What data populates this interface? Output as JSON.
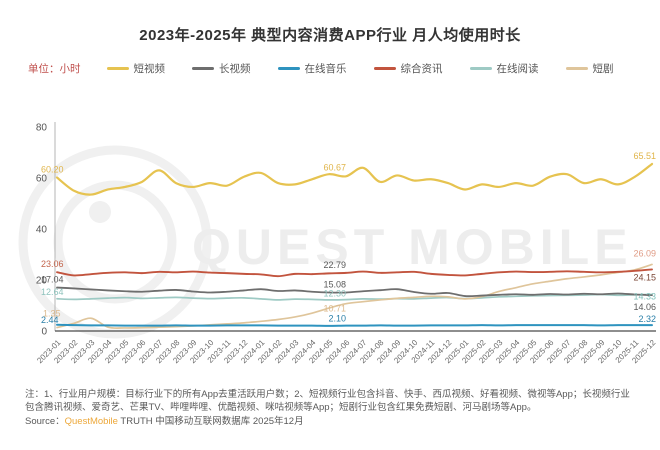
{
  "title": "2023年-2025年 典型内容消费APP行业 月人均使用时长",
  "unit_label": "单位：小时",
  "legend": {
    "items": [
      {
        "label": "短视频",
        "color": "#e6c350"
      },
      {
        "label": "长视频",
        "color": "#6e6e6e"
      },
      {
        "label": "在线音乐",
        "color": "#2e93bf"
      },
      {
        "label": "综合资讯",
        "color": "#c2543e"
      },
      {
        "label": "在线阅读",
        "color": "#9ecac4"
      },
      {
        "label": "短剧",
        "color": "#dfc59b"
      }
    ]
  },
  "watermark": {
    "text": "QUEST MOBILE"
  },
  "chart_data": {
    "type": "line",
    "title": "2023年-2025年 典型内容消费APP行业 月人均使用时长",
    "ylabel": "小时",
    "ylim": [
      0,
      80
    ],
    "yticks": [
      0,
      20,
      40,
      60,
      80
    ],
    "grid": false,
    "legend_position": "top",
    "x": [
      "2023-01",
      "2023-02",
      "2023-03",
      "2023-04",
      "2023-05",
      "2023-06",
      "2023-07",
      "2023-08",
      "2023-09",
      "2023-10",
      "2023-11",
      "2023-12",
      "2024-01",
      "2024-02",
      "2024-03",
      "2024-04",
      "2024-05",
      "2024-06",
      "2024-07",
      "2024-08",
      "2024-09",
      "2024-10",
      "2024-11",
      "2024-12",
      "2025-01",
      "2025-02",
      "2025-03",
      "2025-04",
      "2025-05",
      "2025-06",
      "2025-07",
      "2025-08",
      "2025-09",
      "2025-10",
      "2025-11",
      "2025-12"
    ],
    "series": [
      {
        "name": "短视频",
        "color": "#e6c350",
        "values": [
          60.2,
          55.0,
          53.5,
          55.5,
          56.5,
          58.5,
          63.0,
          58.0,
          56.5,
          58.0,
          57.0,
          60.5,
          62.0,
          58.0,
          57.5,
          59.5,
          61.5,
          60.67,
          64.0,
          58.5,
          61.0,
          59.0,
          59.5,
          58.0,
          55.5,
          57.5,
          56.5,
          58.0,
          57.0,
          60.5,
          61.5,
          58.0,
          59.5,
          57.5,
          60.5,
          65.51
        ]
      },
      {
        "name": "长视频",
        "color": "#6e6e6e",
        "values": [
          17.04,
          16.7,
          16.3,
          15.9,
          15.6,
          15.4,
          15.8,
          16.1,
          15.5,
          15.1,
          15.4,
          15.9,
          16.4,
          15.7,
          15.9,
          15.4,
          15.1,
          15.08,
          15.6,
          16.0,
          16.4,
          15.3,
          14.6,
          14.9,
          13.7,
          13.9,
          14.2,
          14.4,
          14.2,
          14.5,
          14.3,
          14.6,
          14.4,
          14.7,
          14.3,
          14.06
        ]
      },
      {
        "name": "在线音乐",
        "color": "#2e93bf",
        "values": [
          2.44,
          2.3,
          2.2,
          2.2,
          2.1,
          2.1,
          2.1,
          2.2,
          2.1,
          2.1,
          2.2,
          2.2,
          2.2,
          2.1,
          2.1,
          2.1,
          2.0,
          2.1,
          2.1,
          2.2,
          2.1,
          2.1,
          2.2,
          2.2,
          2.2,
          2.3,
          2.2,
          2.3,
          2.3,
          2.3,
          2.3,
          2.3,
          2.2,
          2.3,
          2.3,
          2.32
        ]
      },
      {
        "name": "综合资讯",
        "color": "#c2543e",
        "values": [
          23.06,
          21.8,
          22.3,
          22.8,
          23.0,
          22.7,
          23.2,
          23.0,
          23.3,
          22.9,
          22.7,
          22.4,
          22.2,
          21.5,
          22.4,
          22.3,
          22.6,
          22.79,
          23.3,
          22.8,
          23.0,
          23.2,
          22.4,
          22.0,
          21.8,
          22.4,
          23.0,
          23.3,
          23.1,
          23.2,
          23.4,
          23.2,
          23.0,
          23.2,
          23.6,
          24.15
        ]
      },
      {
        "name": "在线阅读",
        "color": "#9ecac4",
        "values": [
          12.64,
          12.4,
          12.6,
          12.9,
          13.1,
          12.8,
          13.0,
          13.2,
          12.9,
          12.7,
          12.9,
          13.0,
          12.6,
          12.2,
          12.5,
          12.4,
          12.2,
          12.3,
          12.6,
          12.5,
          12.7,
          12.6,
          12.9,
          13.1,
          12.7,
          13.0,
          13.4,
          13.6,
          13.8,
          13.9,
          14.0,
          14.1,
          14.3,
          14.0,
          14.2,
          14.33
        ]
      },
      {
        "name": "短剧",
        "color": "#dfc59b",
        "values": [
          1.35,
          3.0,
          5.0,
          1.5,
          1.2,
          1.3,
          1.5,
          1.7,
          2.0,
          2.4,
          2.8,
          3.2,
          3.8,
          4.5,
          5.5,
          7.0,
          9.0,
          10.71,
          11.5,
          12.2,
          12.8,
          13.2,
          13.6,
          13.4,
          12.6,
          13.5,
          15.5,
          17.0,
          18.5,
          19.5,
          20.5,
          21.2,
          22.0,
          23.0,
          24.0,
          26.09
        ]
      }
    ],
    "point_labels": [
      {
        "series": 0,
        "x": "2023-01",
        "text": "60.20",
        "color": "#e0b54a",
        "anchor": "start"
      },
      {
        "series": 3,
        "x": "2023-01",
        "text": "23.06",
        "color": "#c4654c",
        "anchor": "start"
      },
      {
        "series": 1,
        "x": "2023-01",
        "text": "17.04",
        "color": "#595959",
        "anchor": "start"
      },
      {
        "series": 4,
        "x": "2023-01",
        "text": "12.64",
        "color": "#8fc3bd",
        "anchor": "start"
      },
      {
        "series": 5,
        "x": "2023-01",
        "text": "1.35",
        "color": "#dcb98c",
        "anchor": "start"
      },
      {
        "series": 2,
        "x": "2023-01",
        "text": "2.44",
        "color": "#2a7fa8",
        "anchor": "start"
      },
      {
        "series": 0,
        "x": "2024-06",
        "text": "60.67",
        "color": "#e0b54a",
        "anchor": "end"
      },
      {
        "series": 3,
        "x": "2024-06",
        "text": "22.79",
        "color": "#595959",
        "anchor": "end"
      },
      {
        "series": 1,
        "x": "2024-06",
        "text": "15.08",
        "color": "#595959",
        "anchor": "end"
      },
      {
        "series": 4,
        "x": "2024-06",
        "text": "12.30",
        "color": "#8fc3bd",
        "anchor": "end"
      },
      {
        "series": 5,
        "x": "2024-06",
        "text": "10.71",
        "color": "#dcb98c",
        "anchor": "end"
      },
      {
        "series": 2,
        "x": "2024-06",
        "text": "2.10",
        "color": "#2a7fa8",
        "anchor": "end"
      },
      {
        "series": 0,
        "x": "2025-12",
        "text": "65.51",
        "color": "#e0b54a",
        "anchor": "end"
      },
      {
        "series": 5,
        "x": "2025-12",
        "text": "26.09",
        "color": "#e09c86",
        "anchor": "end"
      },
      {
        "series": 3,
        "x": "2025-12",
        "text": "24.15",
        "color": "#7a4636",
        "anchor": "end"
      },
      {
        "series": 4,
        "x": "2025-12",
        "text": "14.33",
        "color": "#7fc0ba",
        "anchor": "end"
      },
      {
        "series": 1,
        "x": "2025-12",
        "text": "14.06",
        "color": "#595959",
        "anchor": "end"
      },
      {
        "series": 2,
        "x": "2025-12",
        "text": "2.32",
        "color": "#2a7fa8",
        "anchor": "end"
      }
    ]
  },
  "footnote": "注：1、行业用户规模：目标行业下的所有App去重活跃用户数；2、短视频行业包含抖音、快手、西瓜视频、好看视频、微视等App；长视频行业包含腾讯视频、爱奇艺、芒果TV、哔哩哔哩、优酷视频、咪咕视频等App；短剧行业包含红果免费短剧、河马剧场等App。",
  "source": {
    "prefix": "Source：",
    "brand": "QuestMobile",
    "suffix": " TRUTH 中国移动互联网数据库 2025年12月"
  }
}
